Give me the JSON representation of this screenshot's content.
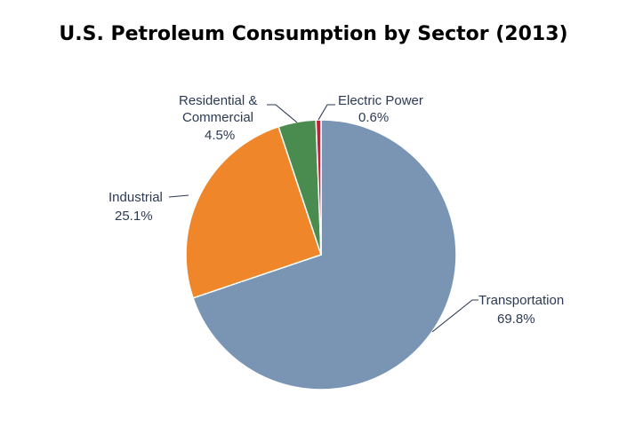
{
  "chart_data": {
    "type": "pie",
    "title": "U.S. Petroleum Consumption by Sector (2013)",
    "start_angle_deg": 0,
    "direction": "clockwise",
    "slices": [
      {
        "label": "Transportation",
        "value": 69.8,
        "value_label": "69.8%",
        "color": "#7a95b4"
      },
      {
        "label": "Industrial",
        "value": 25.1,
        "value_label": "25.1%",
        "color": "#ef8629"
      },
      {
        "label": "Residential &",
        "label2": "Commercial",
        "value": 4.5,
        "value_label": "4.5%",
        "color": "#4a8c4f"
      },
      {
        "label": "Electric Power",
        "value": 0.6,
        "value_label": "0.6%",
        "color": "#c21f3a"
      }
    ]
  }
}
